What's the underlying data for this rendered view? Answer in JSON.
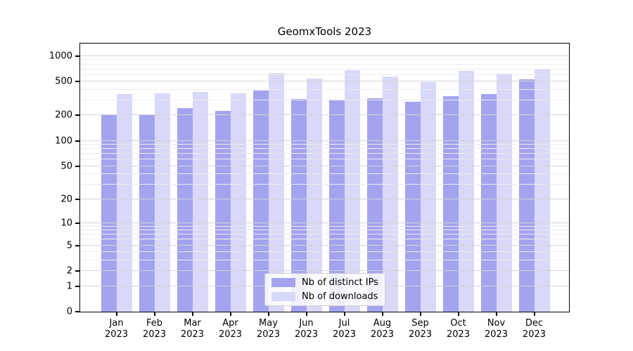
{
  "figure": {
    "title": "GeomxTools 2023",
    "background_color": "#ffffff",
    "text_color": "#000000"
  },
  "chart_data": {
    "type": "bar",
    "title": "GeomxTools 2023",
    "xlabel": "",
    "ylabel": "",
    "year": "2023",
    "months": [
      "Jan",
      "Feb",
      "Mar",
      "Apr",
      "May",
      "Jun",
      "Jul",
      "Aug",
      "Sep",
      "Oct",
      "Nov",
      "Dec"
    ],
    "categories": [
      "Jan 2023",
      "Feb 2023",
      "Mar 2023",
      "Apr 2023",
      "May 2023",
      "Jun 2023",
      "Jul 2023",
      "Aug 2023",
      "Sep 2023",
      "Oct 2023",
      "Nov 2023",
      "Dec 2023"
    ],
    "series": [
      {
        "name": "Nb of distinct IPs",
        "color": "#a3a3f0",
        "values": [
          203,
          203,
          242,
          227,
          396,
          312,
          302,
          318,
          292,
          338,
          358,
          530
        ]
      },
      {
        "name": "Nb of downloads",
        "color": "#d8d8f8",
        "values": [
          356,
          361,
          376,
          363,
          630,
          543,
          683,
          576,
          489,
          673,
          621,
          692
        ]
      }
    ],
    "yscale": "log1p",
    "ylim": [
      0,
      1400
    ],
    "y_major_ticks": [
      1000,
      500,
      200,
      100,
      50,
      20,
      10,
      5,
      2,
      1,
      0
    ],
    "y_minor_gridlines": [
      3,
      4,
      6,
      7,
      8,
      9,
      30,
      40,
      60,
      70,
      80,
      90,
      300,
      400,
      600,
      700,
      800,
      900
    ],
    "grid": true,
    "grid_major_color": "#d4d4d4",
    "grid_minor_color": "#ebebeb",
    "legend_position": "inside-bottom-center",
    "legend_border_color": "#cccccc"
  }
}
